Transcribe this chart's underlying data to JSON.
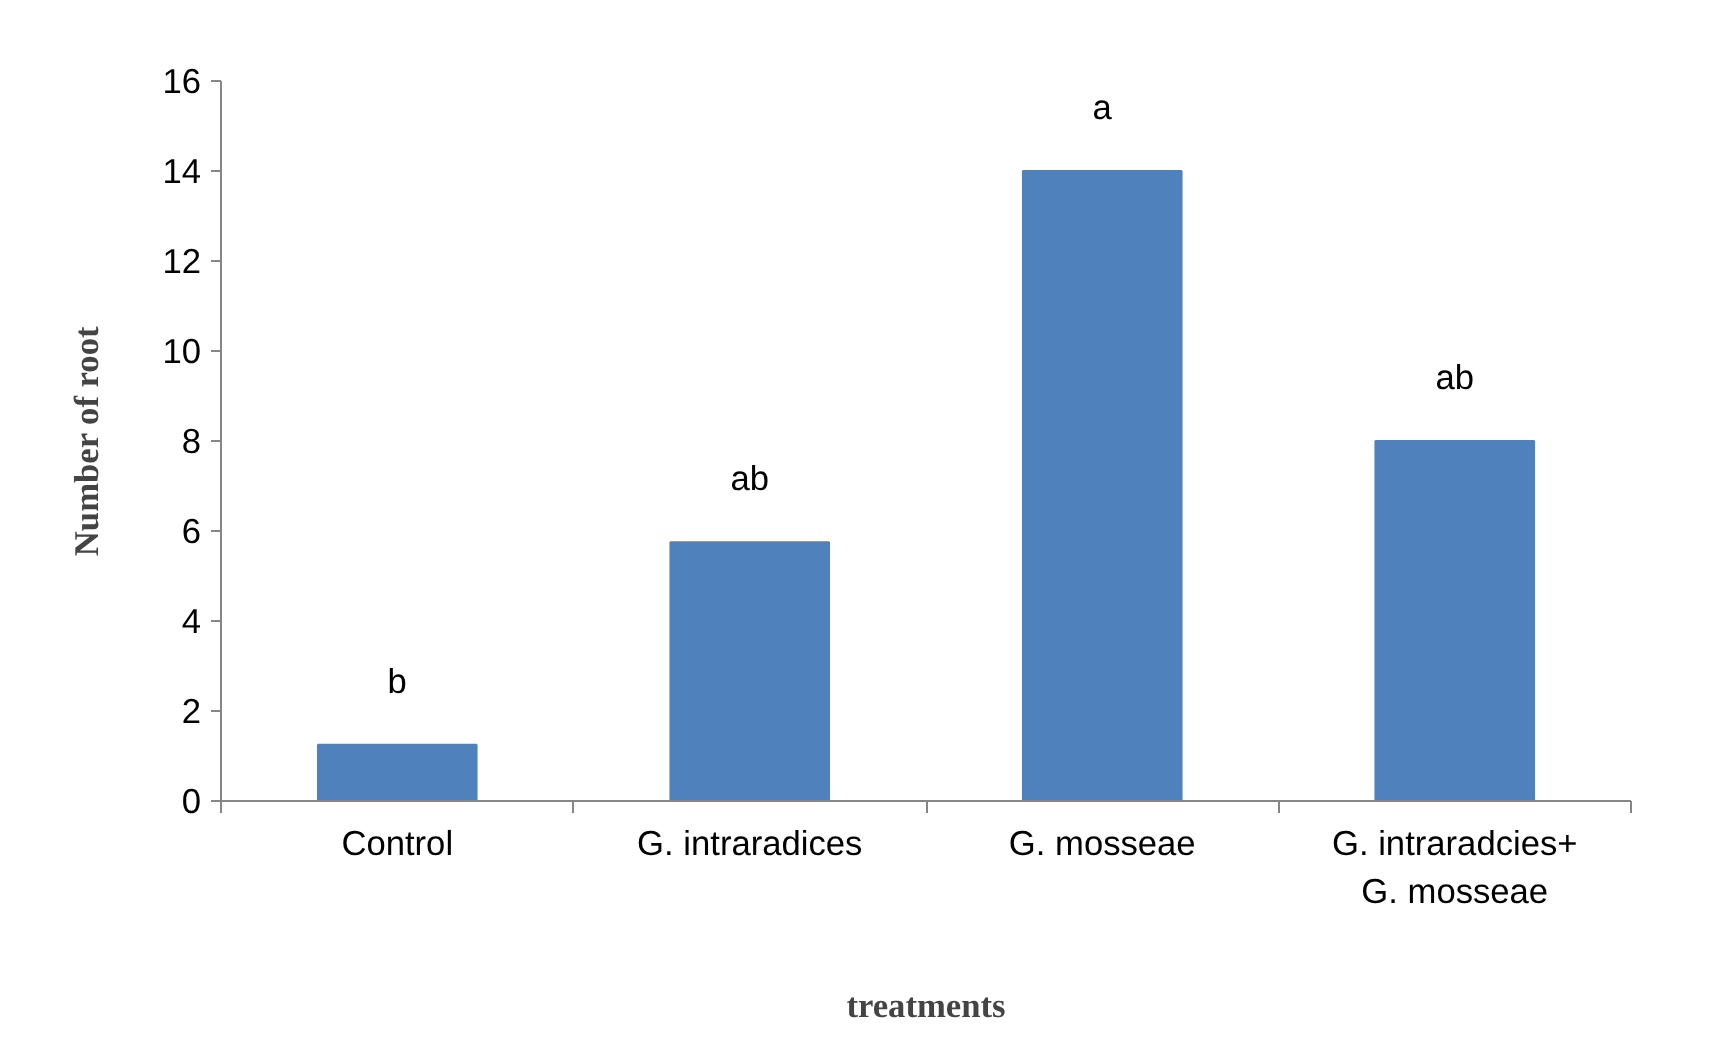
{
  "chart_data": {
    "type": "bar",
    "xlabel": "treatments",
    "ylabel": "Number of root",
    "categories": [
      "Control",
      "G. intraradices",
      "G. mosseae",
      "G. intraradcies+\nG. mosseae"
    ],
    "values": [
      1.25,
      5.75,
      14,
      8
    ],
    "color": "#4f81bd",
    "ylim": [
      0,
      16
    ],
    "yticks": [
      0,
      2,
      4,
      6,
      8,
      10,
      12,
      14,
      16
    ],
    "grid": false,
    "annotations": [
      "b",
      "ab",
      "a",
      "ab"
    ]
  }
}
